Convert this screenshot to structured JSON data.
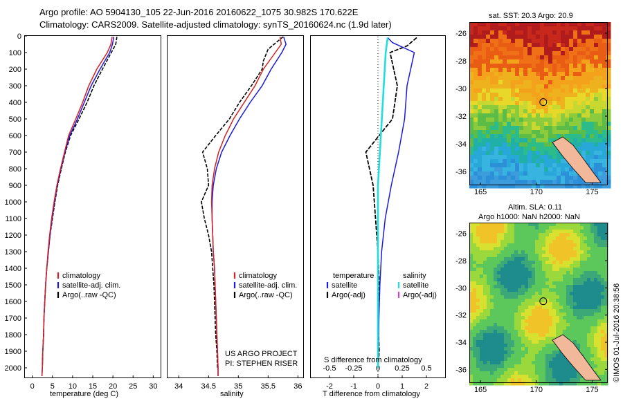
{
  "header": {
    "line1": "Argo profile: AO 5904130_105 22-Jun-2016 20160622_1075 30.982S 170.622E",
    "line2": "Climatology: CARS2009. Satellite-adjusted climatology: synTS_20160624.nc (1.9d later)"
  },
  "depth_ticks": [
    "0",
    "100",
    "200",
    "300",
    "400",
    "500",
    "600",
    "700",
    "800",
    "900",
    "1000",
    "1100",
    "1200",
    "1300",
    "1400",
    "1500",
    "1600",
    "1700",
    "1800",
    "1900",
    "2000"
  ],
  "colors": {
    "climatology": "#d62020",
    "satellite": "#1a1ad8",
    "argo": "#000000",
    "sal_sat": "#22dddd",
    "sal_argo": "#d63cd6"
  },
  "panels": {
    "temperature": {
      "xlabel": "temperature (deg C)",
      "xticks": [
        "0",
        "5",
        "10",
        "15",
        "20",
        "25",
        "30"
      ],
      "legend": [
        "climatology",
        "satellite-adj. clim.",
        "Argo(..raw -QC)"
      ]
    },
    "salinity": {
      "xlabel": "salinity",
      "xticks": [
        "34",
        "34.5",
        "35",
        "35.5",
        "36"
      ],
      "legend": [
        "climatology",
        "satellite-adj. clim.",
        "Argo(..raw -QC)"
      ],
      "project": "US ARGO PROJECT",
      "pi": "PI: STEPHEN RISER"
    },
    "difference": {
      "xlabel": "T difference from climatology",
      "s_title": "S difference from climatology",
      "t_ticks": [
        "-2",
        "-1",
        "0",
        "1",
        "2"
      ],
      "s_ticks": [
        "-0.5",
        "-0.25",
        "0",
        "0.25",
        "0.5"
      ],
      "legend_t_title": "temperature",
      "legend_s_title": "salinity",
      "legend_t": [
        "satellite",
        "Argo(-adj)"
      ],
      "legend_s": [
        "satellite",
        "Argo(-adj)"
      ]
    }
  },
  "maps": {
    "sst": {
      "title": "sat. SST: 20.3 Argo: 20.9",
      "yticks": [
        "-26",
        "-28",
        "-30",
        "-32",
        "-34",
        "-36"
      ],
      "xticks": [
        "165",
        "170",
        "175"
      ]
    },
    "sla": {
      "title1": "Altim. SLA: 0.11",
      "title2": "Argo h1000: NaN h2000: NaN",
      "yticks": [
        "-26",
        "-28",
        "-30",
        "-32",
        "-34",
        "-36"
      ],
      "xticks": [
        "165",
        "170",
        "175"
      ]
    }
  },
  "credit": "©IMOS 01-Jul-2016 20:38:56",
  "chart_data": [
    {
      "type": "line",
      "title": "",
      "xlabel": "temperature (deg C)",
      "ylabel": "",
      "xlim": [
        -2,
        32
      ],
      "ylim": [
        2050,
        0
      ],
      "series": [
        {
          "name": "climatology",
          "points": [
            [
              19.8,
              5
            ],
            [
              19.5,
              50
            ],
            [
              18.6,
              100
            ],
            [
              16,
              200
            ],
            [
              14,
              300
            ],
            [
              12.5,
              400
            ],
            [
              10.8,
              500
            ],
            [
              9,
              600
            ],
            [
              8,
              700
            ],
            [
              7,
              800
            ],
            [
              6.1,
              900
            ],
            [
              5.4,
              1000
            ],
            [
              4.8,
              1100
            ],
            [
              4.3,
              1200
            ],
            [
              3.9,
              1300
            ],
            [
              3.6,
              1400
            ],
            [
              3.3,
              1500
            ],
            [
              3.1,
              1600
            ],
            [
              2.9,
              1700
            ],
            [
              2.8,
              1800
            ],
            [
              2.6,
              1900
            ],
            [
              2.5,
              2000
            ],
            [
              2.4,
              2050
            ]
          ]
        },
        {
          "name": "satellite-adj. clim.",
          "points": [
            [
              20.2,
              5
            ],
            [
              19.9,
              50
            ],
            [
              19.2,
              100
            ],
            [
              16.8,
              200
            ],
            [
              14.6,
              300
            ],
            [
              12.9,
              400
            ],
            [
              11.2,
              500
            ],
            [
              9.3,
              600
            ],
            [
              8.1,
              700
            ],
            [
              7.1,
              800
            ],
            [
              6.2,
              900
            ],
            [
              5.5,
              1000
            ],
            [
              4.9,
              1100
            ],
            [
              4.4,
              1200
            ],
            [
              4,
              1300
            ],
            [
              3.6,
              1400
            ],
            [
              3.3,
              1500
            ],
            [
              3.1,
              1600
            ],
            [
              2.9,
              1700
            ],
            [
              2.8,
              1800
            ],
            [
              2.6,
              1900
            ],
            [
              2.5,
              2000
            ],
            [
              2.4,
              2050
            ]
          ]
        },
        {
          "name": "Argo(..raw -QC)",
          "points": [
            [
              21,
              5
            ],
            [
              20.7,
              50
            ],
            [
              19.6,
              100
            ],
            [
              17.4,
              200
            ],
            [
              15.3,
              300
            ],
            [
              13.6,
              400
            ],
            [
              11.6,
              500
            ],
            [
              9.5,
              600
            ],
            [
              8.2,
              700
            ],
            [
              7.2,
              800
            ],
            [
              6.3,
              900
            ],
            [
              5.6,
              1000
            ],
            [
              5,
              1100
            ],
            [
              4.4,
              1200
            ],
            [
              4,
              1300
            ],
            [
              3.6,
              1400
            ],
            [
              3.3,
              1500
            ],
            [
              3.1,
              1600
            ],
            [
              2.9,
              1700
            ],
            [
              2.8,
              1800
            ],
            [
              2.6,
              1900
            ],
            [
              2.5,
              2000
            ]
          ]
        }
      ]
    },
    {
      "type": "line",
      "title": "",
      "xlabel": "salinity",
      "ylabel": "",
      "xlim": [
        33.8,
        36.1
      ],
      "ylim": [
        2050,
        0
      ],
      "series": [
        {
          "name": "climatology",
          "points": [
            [
              35.7,
              5
            ],
            [
              35.72,
              50
            ],
            [
              35.62,
              100
            ],
            [
              35.42,
              200
            ],
            [
              35.28,
              300
            ],
            [
              35.1,
              400
            ],
            [
              34.92,
              500
            ],
            [
              34.78,
              600
            ],
            [
              34.67,
              700
            ],
            [
              34.6,
              800
            ],
            [
              34.56,
              900
            ],
            [
              34.55,
              1000
            ],
            [
              34.56,
              1100
            ],
            [
              34.57,
              1200
            ],
            [
              34.58,
              1300
            ],
            [
              34.6,
              1400
            ],
            [
              34.61,
              1500
            ],
            [
              34.62,
              1600
            ],
            [
              34.63,
              1700
            ],
            [
              34.64,
              1800
            ],
            [
              34.65,
              1900
            ],
            [
              34.66,
              2000
            ],
            [
              34.66,
              2050
            ]
          ]
        },
        {
          "name": "satellite-adj. clim.",
          "points": [
            [
              35.76,
              5
            ],
            [
              35.8,
              50
            ],
            [
              35.73,
              100
            ],
            [
              35.55,
              200
            ],
            [
              35.4,
              300
            ],
            [
              35.2,
              400
            ],
            [
              35.02,
              500
            ],
            [
              34.86,
              600
            ],
            [
              34.72,
              700
            ],
            [
              34.63,
              800
            ],
            [
              34.58,
              900
            ],
            [
              34.56,
              1000
            ],
            [
              34.56,
              1100
            ],
            [
              34.57,
              1200
            ],
            [
              34.58,
              1300
            ],
            [
              34.6,
              1400
            ],
            [
              34.61,
              1500
            ],
            [
              34.62,
              1600
            ],
            [
              34.63,
              1700
            ],
            [
              34.64,
              1800
            ],
            [
              34.65,
              1900
            ],
            [
              34.66,
              2000
            ],
            [
              34.66,
              2050
            ]
          ]
        },
        {
          "name": "Argo(..raw -QC)",
          "points": [
            [
              35.75,
              5
            ],
            [
              35.5,
              80
            ],
            [
              35.42,
              150
            ],
            [
              35.4,
              200
            ],
            [
              35.22,
              300
            ],
            [
              35.02,
              400
            ],
            [
              34.85,
              500
            ],
            [
              34.62,
              600
            ],
            [
              34.4,
              700
            ],
            [
              34.48,
              800
            ],
            [
              34.5,
              900
            ],
            [
              34.38,
              1000
            ],
            [
              34.43,
              1100
            ],
            [
              34.5,
              1200
            ],
            [
              34.55,
              1300
            ],
            [
              34.57,
              1400
            ],
            [
              34.59,
              1500
            ],
            [
              34.6,
              1600
            ],
            [
              34.61,
              1700
            ],
            [
              34.62,
              1800
            ],
            [
              34.64,
              1900
            ],
            [
              34.65,
              2000
            ]
          ]
        }
      ]
    },
    {
      "type": "line",
      "title": "",
      "xlabel": "T difference from climatology",
      "ylabel": "",
      "xlim": [
        -2.8,
        2.8
      ],
      "ylim": [
        2050,
        0
      ],
      "series": [
        {
          "name": "satellite",
          "points": [
            [
              0.4,
              10
            ],
            [
              0.6,
              40
            ],
            [
              1.5,
              100
            ],
            [
              1.2,
              300
            ],
            [
              1.1,
              500
            ],
            [
              0.85,
              700
            ],
            [
              0.55,
              900
            ],
            [
              0.3,
              1100
            ],
            [
              0.15,
              1300
            ],
            [
              0.08,
              1500
            ],
            [
              0.04,
              1700
            ],
            [
              0.02,
              1900
            ],
            [
              0.01,
              2000
            ]
          ]
        },
        {
          "name": "Argo(-adj)",
          "points": [
            [
              1.6,
              10
            ],
            [
              1.2,
              60
            ],
            [
              0.5,
              100
            ],
            [
              0.8,
              300
            ],
            [
              0.6,
              500
            ],
            [
              -0.5,
              700
            ],
            [
              -0.2,
              900
            ],
            [
              -0.1,
              1100
            ],
            [
              0,
              1300
            ],
            [
              0.05,
              1500
            ],
            [
              0,
              1700
            ],
            [
              0.05,
              1900
            ],
            [
              0,
              2000
            ]
          ]
        }
      ]
    },
    {
      "type": "line",
      "title": "",
      "xlabel": "S difference from climatology",
      "ylabel": "",
      "xlim": [
        -0.7,
        0.7
      ],
      "ylim": [
        2050,
        0
      ],
      "series": [
        {
          "name": "satellite",
          "points": [
            [
              0.1,
              10
            ],
            [
              0.08,
              100
            ],
            [
              0.06,
              300
            ],
            [
              0.04,
              500
            ],
            [
              0.02,
              700
            ],
            [
              0,
              900
            ],
            [
              0,
              1100
            ],
            [
              0,
              1300
            ],
            [
              0,
              1500
            ],
            [
              0,
              1700
            ],
            [
              0,
              2000
            ]
          ]
        }
      ]
    }
  ]
}
